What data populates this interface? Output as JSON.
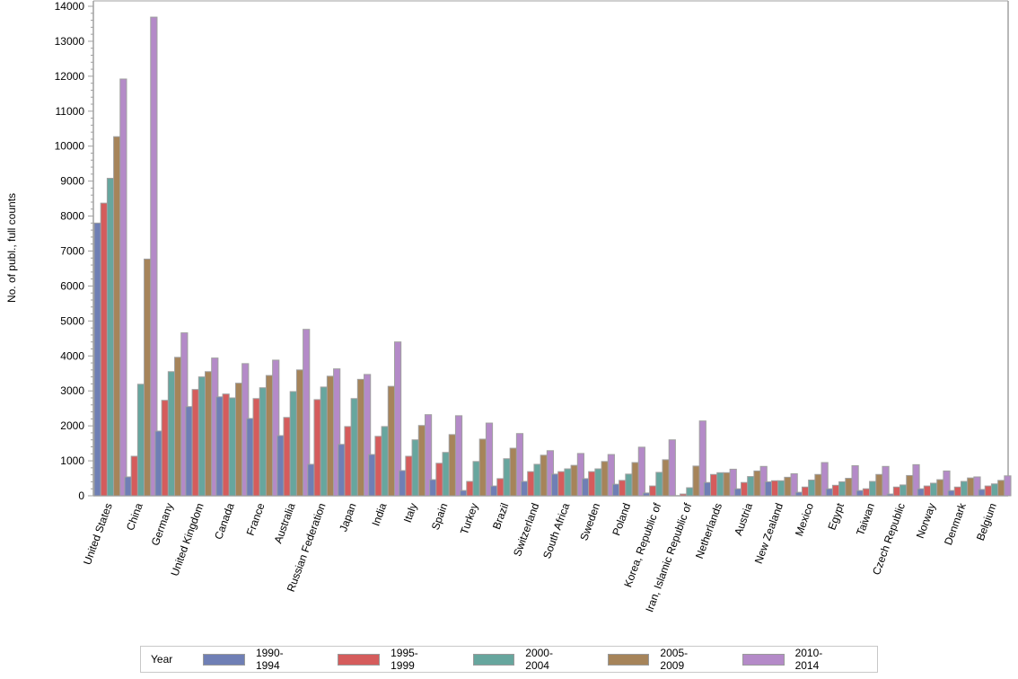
{
  "chart_data": {
    "type": "bar",
    "title": "",
    "xlabel": "",
    "ylabel": "No. of publ., full counts",
    "ylim": [
      0,
      14000
    ],
    "yticks": [
      0,
      1000,
      2000,
      3000,
      4000,
      5000,
      6000,
      7000,
      8000,
      9000,
      10000,
      11000,
      12000,
      13000,
      14000
    ],
    "grid": false,
    "legend_position": "bottom",
    "legend_title": "Year",
    "categories": [
      "United States",
      "China",
      "Germany",
      "United Kingdom",
      "Canada",
      "France",
      "Australia",
      "Russian Federation",
      "Japan",
      "India",
      "Italy",
      "Spain",
      "Turkey",
      "Brazil",
      "Switzerland",
      "South Africa",
      "Sweden",
      "Poland",
      "Korea, Republic of",
      "Iran, Islamic Republic of",
      "Netherlands",
      "Austria",
      "New Zealand",
      "Mexico",
      "Egypt",
      "Taiwan",
      "Czech Republic",
      "Norway",
      "Denmark",
      "Belgium"
    ],
    "series": [
      {
        "name": "1990-1994",
        "color": "#6f7fb5",
        "values": [
          7800,
          540,
          1850,
          2550,
          2830,
          2210,
          1720,
          900,
          1470,
          1180,
          720,
          460,
          150,
          280,
          410,
          620,
          490,
          330,
          80,
          0,
          380,
          200,
          400,
          100,
          200,
          150,
          50,
          200,
          150,
          180
        ]
      },
      {
        "name": "1995-1999",
        "color": "#d55c5c",
        "values": [
          8370,
          1130,
          2730,
          3040,
          2910,
          2780,
          2240,
          2750,
          1980,
          1700,
          1130,
          930,
          410,
          490,
          690,
          690,
          690,
          440,
          280,
          50,
          610,
          380,
          430,
          250,
          300,
          200,
          250,
          280,
          250,
          280
        ]
      },
      {
        "name": "2000-2004",
        "color": "#67a69e",
        "values": [
          9080,
          3190,
          3550,
          3400,
          2800,
          3090,
          2980,
          3110,
          2780,
          1980,
          1600,
          1240,
          980,
          1060,
          900,
          770,
          770,
          620,
          670,
          230,
          660,
          550,
          430,
          450,
          400,
          410,
          310,
          360,
          410,
          340
        ]
      },
      {
        "name": "2005-2009",
        "color": "#a6845a",
        "values": [
          10270,
          6770,
          3960,
          3550,
          3220,
          3440,
          3600,
          3420,
          3330,
          3130,
          2010,
          1750,
          1620,
          1360,
          1160,
          870,
          980,
          950,
          1030,
          850,
          660,
          710,
          530,
          610,
          500,
          610,
          580,
          460,
          510,
          440
        ]
      },
      {
        "name": "2010-2014",
        "color": "#b48ac8",
        "values": [
          11920,
          13690,
          4660,
          3940,
          3780,
          3880,
          4760,
          3630,
          3470,
          4400,
          2320,
          2290,
          2080,
          1780,
          1290,
          1210,
          1180,
          1390,
          1600,
          2140,
          760,
          840,
          630,
          950,
          860,
          840,
          890,
          710,
          540,
          570
        ]
      }
    ]
  },
  "legend": {
    "title": "Year",
    "items": [
      "1990-1994",
      "1995-1999",
      "2000-2004",
      "2005-2009",
      "2010-2014"
    ]
  }
}
